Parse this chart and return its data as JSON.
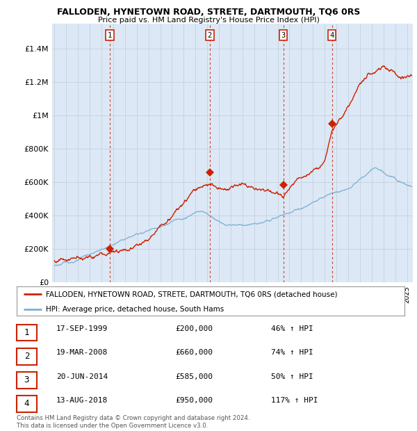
{
  "title": "FALLODEN, HYNETOWN ROAD, STRETE, DARTMOUTH, TQ6 0RS",
  "subtitle": "Price paid vs. HM Land Registry's House Price Index (HPI)",
  "ylim": [
    0,
    1550000
  ],
  "yticks": [
    0,
    200000,
    400000,
    600000,
    800000,
    1000000,
    1200000,
    1400000
  ],
  "ytick_labels": [
    "£0",
    "£200K",
    "£400K",
    "£600K",
    "£800K",
    "£1M",
    "£1.2M",
    "£1.4M"
  ],
  "xlim_start": 1994.8,
  "xlim_end": 2025.5,
  "sale_color": "#cc2200",
  "hpi_color": "#7bafd4",
  "grid_color": "#c8d4e0",
  "plot_background": "#dce8f5",
  "purchases": [
    {
      "num": 1,
      "year": 1999.72,
      "price": 200000,
      "date": "17-SEP-1999",
      "pct": "46%"
    },
    {
      "num": 2,
      "year": 2008.22,
      "price": 660000,
      "date": "19-MAR-2008",
      "pct": "74%"
    },
    {
      "num": 3,
      "year": 2014.47,
      "price": 585000,
      "date": "20-JUN-2014",
      "pct": "50%"
    },
    {
      "num": 4,
      "year": 2018.62,
      "price": 950000,
      "date": "13-AUG-2018",
      "pct": "117%"
    }
  ],
  "legend_label_red": "FALLODEN, HYNETOWN ROAD, STRETE, DARTMOUTH, TQ6 0RS (detached house)",
  "legend_label_blue": "HPI: Average price, detached house, South Hams",
  "footer": "Contains HM Land Registry data © Crown copyright and database right 2024.\nThis data is licensed under the Open Government Licence v3.0.",
  "vline_color": "#cc2200"
}
